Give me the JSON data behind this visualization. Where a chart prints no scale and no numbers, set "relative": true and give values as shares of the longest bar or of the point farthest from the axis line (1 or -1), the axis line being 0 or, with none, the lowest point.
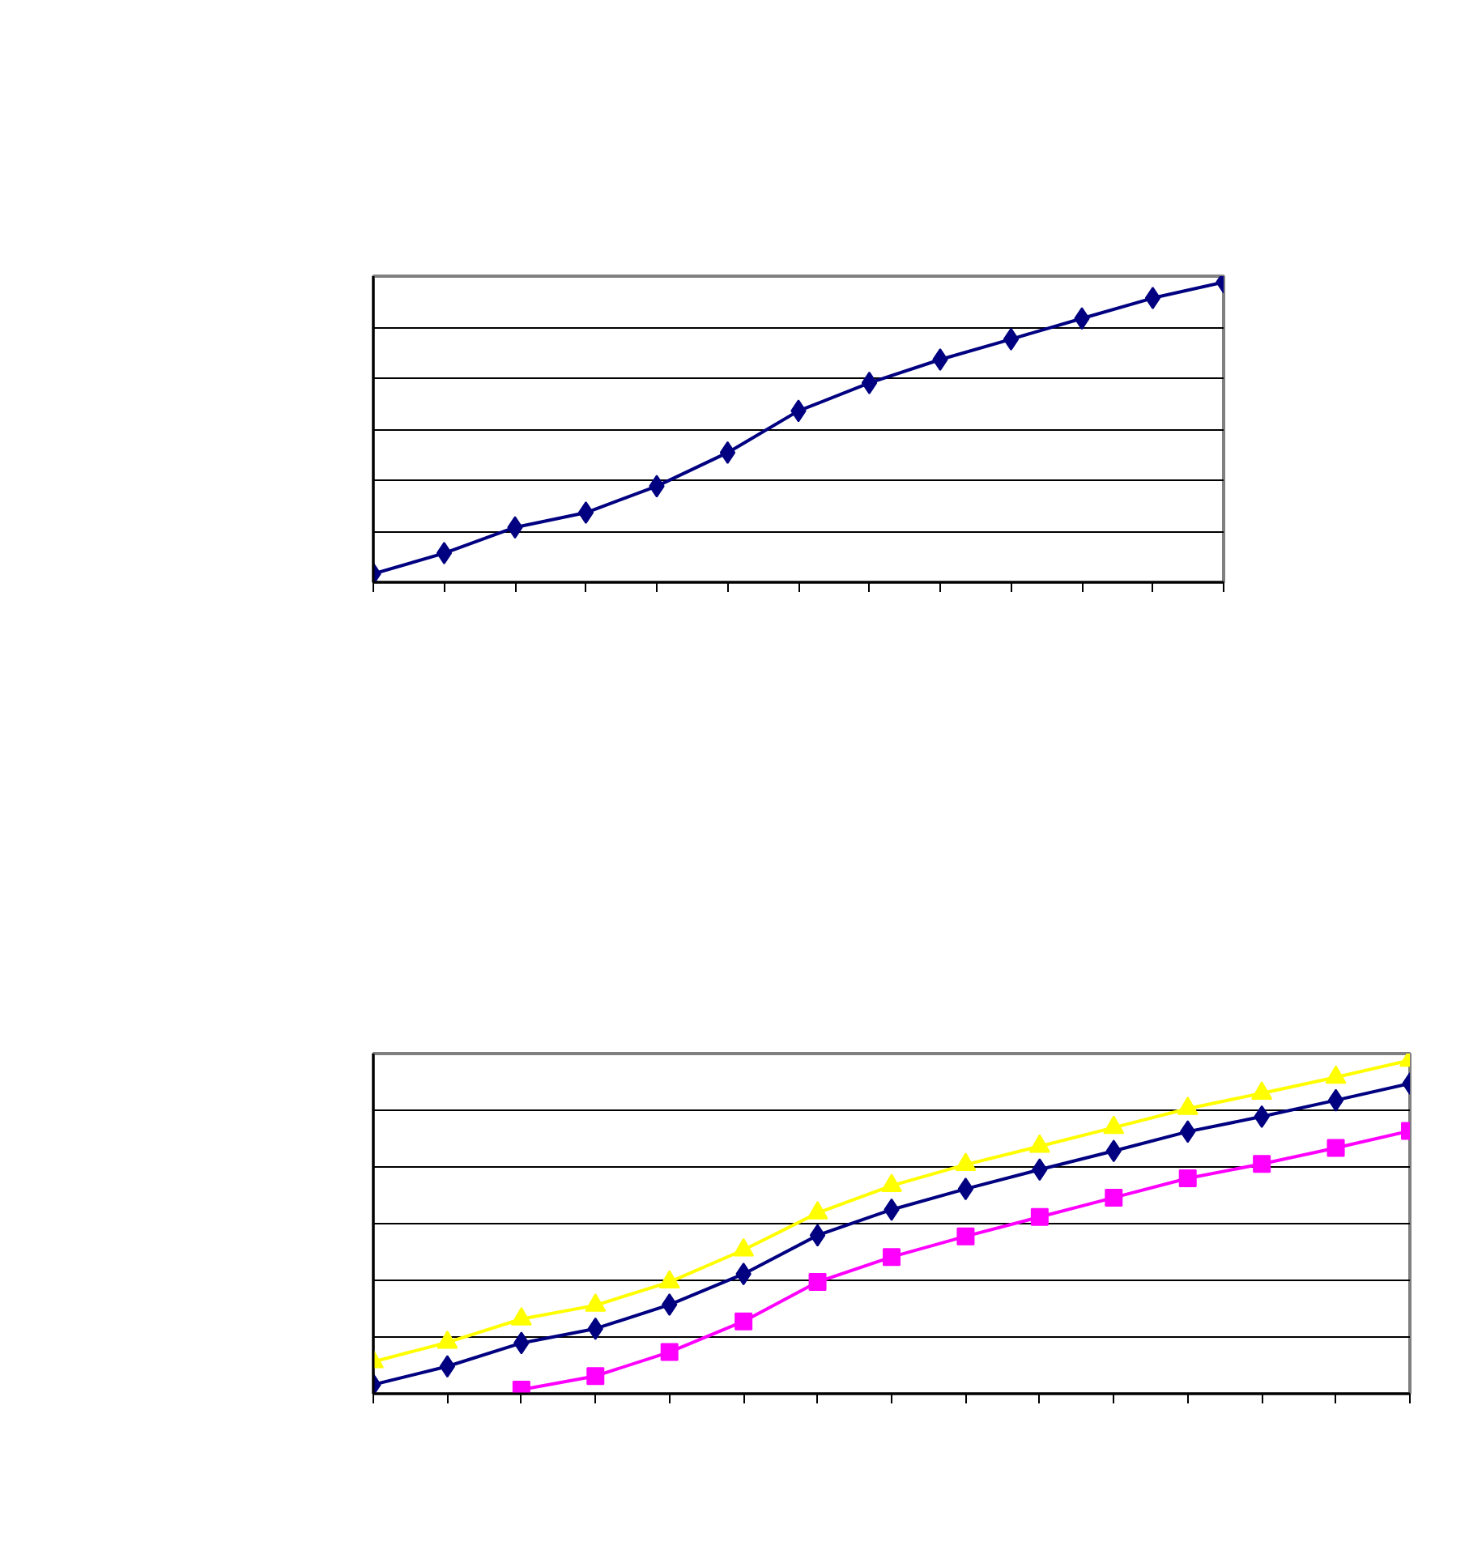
{
  "chart_data": [
    {
      "type": "line",
      "relative": true,
      "grid": "y",
      "marker": "diamond",
      "line_style": "solid",
      "categories": [
        null,
        null,
        null,
        null,
        null,
        null,
        null,
        null,
        null,
        null,
        null,
        null,
        null
      ],
      "series": [
        {
          "color": "#000080",
          "values": [
            0.028,
            0.097,
            0.183,
            0.232,
            0.32,
            0.432,
            0.571,
            0.664,
            0.742,
            0.81,
            0.879,
            0.947,
            1.0
          ]
        }
      ]
    },
    {
      "type": "line",
      "relative": true,
      "grid": "y",
      "line_style": "solid",
      "categories": [
        null,
        null,
        null,
        null,
        null,
        null,
        null,
        null,
        null,
        null,
        null,
        null,
        null,
        null,
        null
      ],
      "series": [
        {
          "color": "#ffff00",
          "marker": "triangle",
          "values": [
            0.096,
            0.154,
            0.224,
            0.265,
            0.335,
            0.431,
            0.542,
            0.624,
            0.687,
            0.742,
            0.798,
            0.855,
            0.901,
            0.949,
            1.0
          ]
        },
        {
          "color": "#000080",
          "marker": "diamond",
          "values": [
            0.027,
            0.082,
            0.152,
            0.195,
            0.267,
            0.359,
            0.475,
            0.552,
            0.614,
            0.672,
            0.728,
            0.786,
            0.831,
            0.88,
            0.93
          ]
        },
        {
          "color": "#ff00ff",
          "marker": "square",
          "values": [
            null,
            null,
            0.012,
            0.053,
            0.125,
            0.217,
            0.335,
            0.41,
            0.472,
            0.53,
            0.588,
            0.646,
            0.689,
            0.737,
            0.788
          ]
        }
      ]
    }
  ]
}
